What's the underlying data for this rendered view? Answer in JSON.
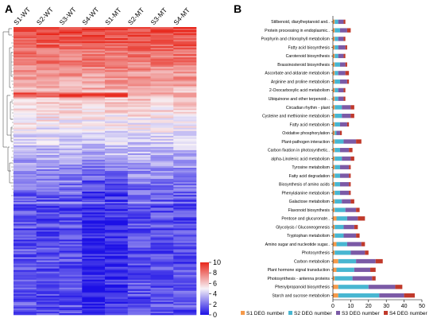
{
  "panel_a": {
    "letter": "A",
    "columns": [
      "S1-WT",
      "S2-WT",
      "S3-WT",
      "S4-WT",
      "S1-MT",
      "S2-MT",
      "S3-MT",
      "S4-MT"
    ],
    "colorbar": {
      "ticks": [
        "10",
        "8",
        "6",
        "4",
        "2",
        "0"
      ],
      "colors": {
        "high": "#e8271b",
        "mid": "#f7f2f7",
        "low": "#1c10e6"
      }
    }
  },
  "panel_b": {
    "letter": "B",
    "legend": [
      {
        "label": "S1 DEG number",
        "color": "#f59a4b"
      },
      {
        "label": "S2 DEG number",
        "color": "#48b6d1"
      },
      {
        "label": "S3 DEG number",
        "color": "#7b5aa6"
      },
      {
        "label": "S4 DEG number",
        "color": "#c0392b"
      }
    ]
  },
  "chart_data": [
    {
      "type": "heatmap",
      "title": "",
      "columns": [
        "S1-WT",
        "S2-WT",
        "S3-WT",
        "S4-WT",
        "S1-MT",
        "S2-MT",
        "S3-MT",
        "S4-MT"
      ],
      "color_scale": {
        "min": 0,
        "max": 10,
        "ticks": [
          0,
          2,
          4,
          6,
          8,
          10
        ]
      },
      "row_dendrogram": true
    },
    {
      "type": "bar",
      "orientation": "horizontal",
      "stacked": true,
      "title": "",
      "xlabel": "",
      "ylabel": "",
      "xlim": [
        0,
        50
      ],
      "xticks": [
        0,
        10,
        20,
        30,
        40,
        50
      ],
      "categories": [
        "Stilbenoid, diarylheptanoid and..",
        "Protein processing in endoplasmic..",
        "Porphyrin and chlorophyll metabolism",
        "Fatty acid biosynthesis",
        "Carotenoid biosynthesis",
        "Brassinosteroid biosynthesis",
        "Ascorbate and aldarate metabolism",
        "Arginine and proline metabolism",
        "2-Oxocarboxylic acid metabolism",
        "Ubiquinone and other terpenoid-..",
        "Circadian rhythm - plant",
        "Cysteine and methionine metabolism",
        "Fatty acid metabolism",
        "Oxidative phosphorylation",
        "Plant-pathogen interaction",
        "Carbon fixation in photosynthetic..",
        "alpha-Linolenic acid metabolism",
        "Tyrosine metabolism",
        "Fatty acid degradation",
        "Biosynthesis of amino acids",
        "Phenylalanine metabolism",
        "Galactose metabolism",
        "Flavonoid biosynthesis",
        "Pentose and glucuronate..",
        "Glycolysis / Gluconeogenesis",
        "Tryptophan metabolism",
        "Amino sugar and nucleotide sugar..",
        "Photosynthesis",
        "Carbon metabolism",
        "Plant hormone signal transduction",
        "Photosynthesis - antenna proteins",
        "Phenylpropanoid biosynthesis",
        "Starch and sucrose metabolism"
      ],
      "series": [
        {
          "name": "S1 DEG number",
          "values": [
            1,
            1,
            1,
            1,
            1,
            1,
            1,
            1,
            1,
            1,
            1,
            1,
            1,
            1,
            1,
            1,
            1,
            1,
            1,
            1,
            1,
            1,
            1,
            2,
            1,
            1,
            2,
            1,
            3,
            2,
            1,
            3,
            3
          ]
        },
        {
          "name": "S2 DEG number",
          "values": [
            2,
            3,
            2,
            2,
            2,
            3,
            2,
            3,
            2,
            2,
            4,
            4,
            3,
            1,
            5,
            3,
            4,
            3,
            3,
            3,
            3,
            4,
            6,
            6,
            5,
            5,
            6,
            9,
            10,
            10,
            10,
            17,
            23
          ]
        },
        {
          "name": "S3 DEG number",
          "values": [
            3,
            4,
            3,
            4,
            3,
            3,
            4,
            4,
            3,
            3,
            5,
            5,
            4,
            2,
            7,
            5,
            5,
            5,
            5,
            5,
            5,
            5,
            6,
            6,
            6,
            7,
            8,
            8,
            11,
            9,
            11,
            15,
            14
          ]
        },
        {
          "name": "S4 DEG number",
          "values": [
            1,
            2,
            1,
            1,
            1,
            1,
            2,
            1,
            1,
            1,
            2,
            2,
            1,
            1,
            3,
            2,
            2,
            1,
            1,
            1,
            1,
            2,
            2,
            4,
            2,
            2,
            2,
            2,
            4,
            3,
            2,
            4,
            6
          ]
        }
      ],
      "legend_position": "bottom"
    }
  ]
}
